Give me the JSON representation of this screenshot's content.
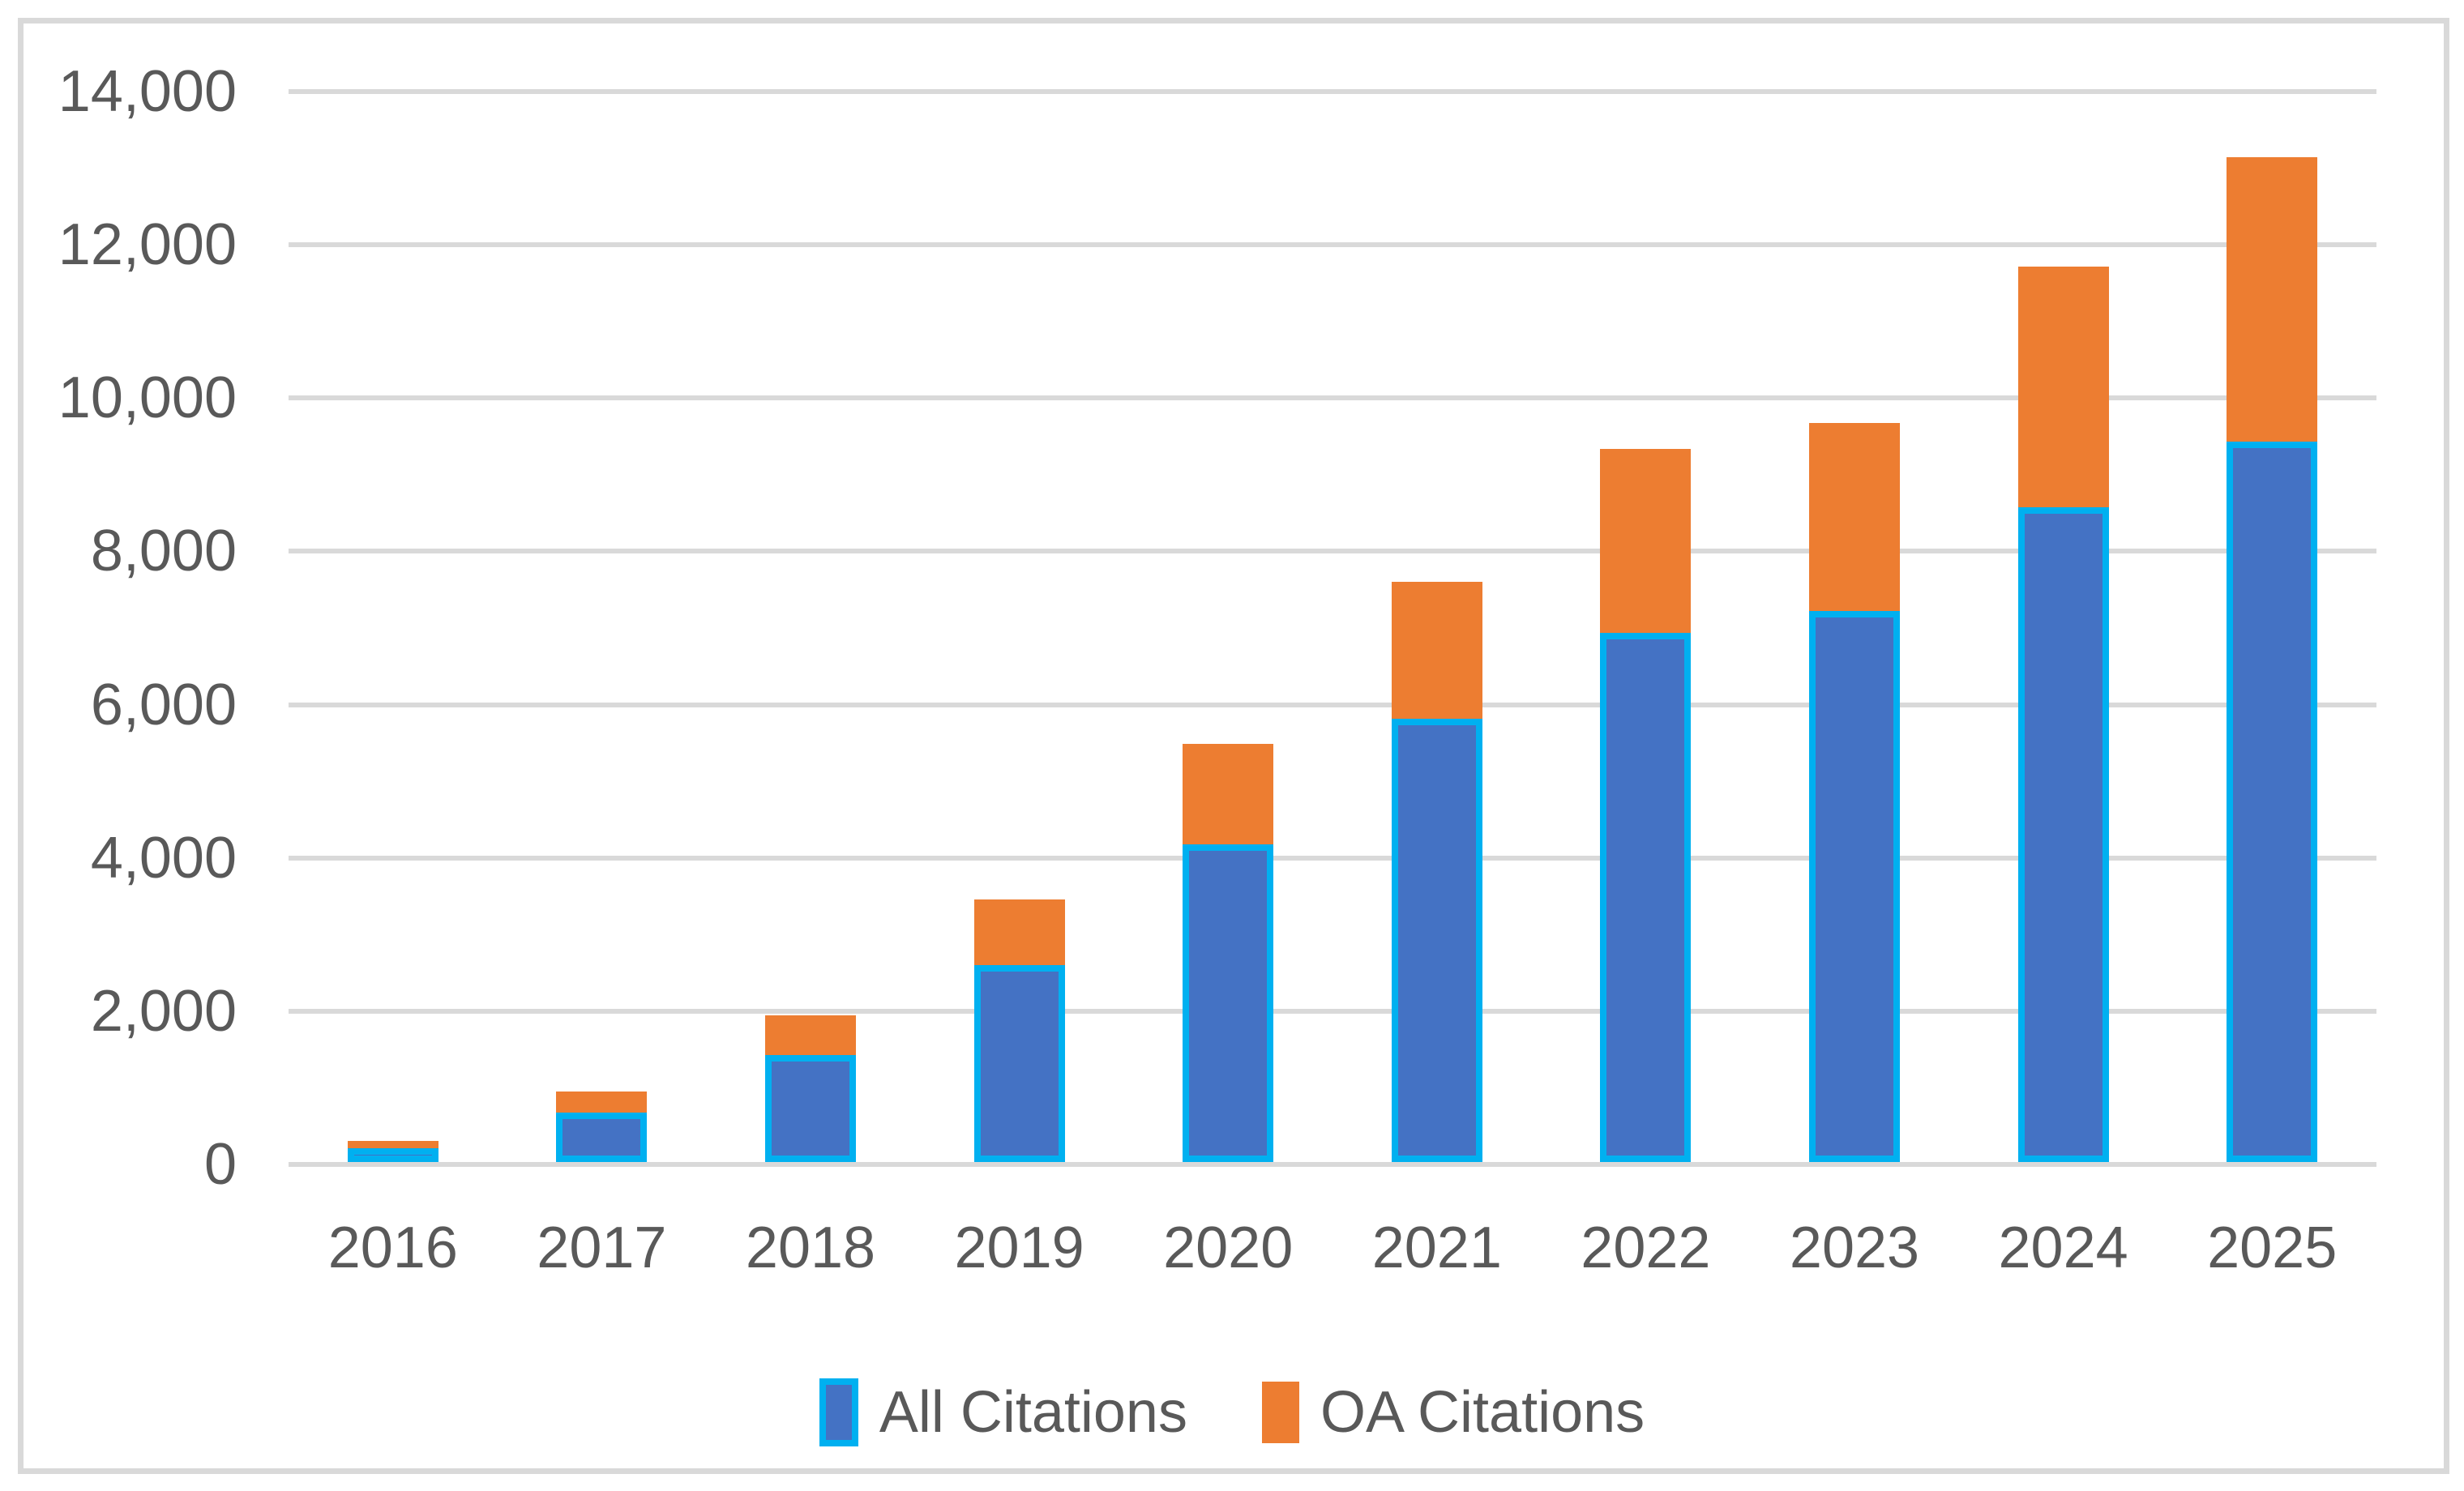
{
  "chart_data": {
    "type": "bar",
    "stacked": true,
    "title": "",
    "xlabel": "",
    "ylabel": "",
    "categories": [
      "2016",
      "2017",
      "2018",
      "2019",
      "2020",
      "2021",
      "2022",
      "2023",
      "2024",
      "2025"
    ],
    "series": [
      {
        "name": "All Citations",
        "values": [
          180,
          650,
          1400,
          2570,
          4140,
          5780,
          6900,
          7190,
          8540,
          9400
        ],
        "fill_color": "#4472C4",
        "border_color": "#00B0F0"
      },
      {
        "name": "OA Citations",
        "values": [
          90,
          270,
          510,
          860,
          1320,
          1790,
          2410,
          2450,
          3140,
          3710
        ],
        "fill_color": "#ED7D31",
        "border_color": null
      }
    ],
    "stack_totals": [
      270,
      920,
      1910,
      3430,
      5460,
      7570,
      9310,
      9640,
      11680,
      13110
    ],
    "ylim": [
      0,
      14000
    ],
    "ytick_step": 2000,
    "ytick_values": [
      0,
      2000,
      4000,
      6000,
      8000,
      10000,
      12000,
      14000
    ],
    "ytick_labels": [
      "0",
      "2,000",
      "4,000",
      "6,000",
      "8,000",
      "10,000",
      "12,000",
      "14,000"
    ],
    "grid": true,
    "legend_position": "bottom",
    "colors": {
      "grid_color": "#D9D9D9",
      "axis_line_color": "#D9D9D9",
      "frame_border_color": "#D9D9D9",
      "text_color": "#595959",
      "background": "#FFFFFF"
    }
  },
  "legend": {
    "items": [
      {
        "label": "All Citations"
      },
      {
        "label": "OA Citations"
      }
    ]
  }
}
